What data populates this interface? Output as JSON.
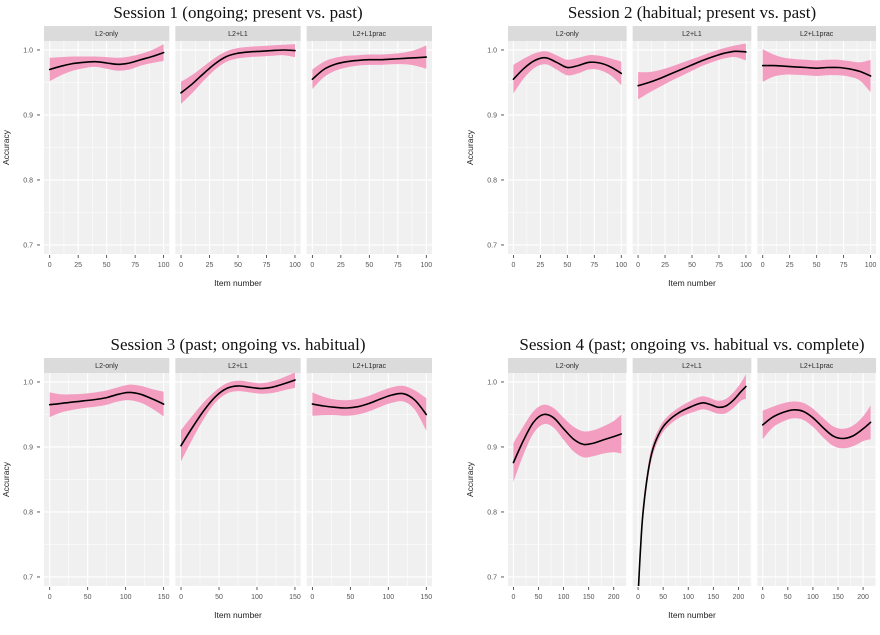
{
  "page": {
    "background": "#ffffff"
  },
  "colors": {
    "ribbon": "#f39ec1",
    "line": "#000000",
    "panel_bg": "#f0f0f0",
    "strip_bg": "#dbdbdb",
    "grid_major": "#ffffff",
    "grid_minor": "#ffffff",
    "tick_mark": "#333333",
    "axis_text": "#555555",
    "axis_title": "#222222",
    "title_text": "#111111"
  },
  "chart_data": [
    {
      "type": "line",
      "title": "Session 1 (ongoing; present vs. past)",
      "xlabel": "Item number",
      "ylabel": "Accuracy",
      "x_max": 100,
      "x_ticks": [
        0,
        25,
        50,
        75,
        100
      ],
      "y_ticks": [
        0.7,
        0.8,
        0.9,
        1.0
      ],
      "y_tick_labels": [
        "0.7",
        "0.8",
        "0.9",
        "1.0"
      ],
      "ylim": [
        0.686,
        1.014
      ],
      "grid": true,
      "legend": "none",
      "facets": [
        {
          "label": "L2-only",
          "x": [
            0,
            10,
            20,
            30,
            40,
            50,
            60,
            70,
            80,
            90,
            100
          ],
          "y": [
            0.97,
            0.975,
            0.979,
            0.981,
            0.982,
            0.98,
            0.978,
            0.98,
            0.985,
            0.99,
            0.996
          ],
          "hi": [
            0.988,
            0.989,
            0.99,
            0.99,
            0.99,
            0.989,
            0.988,
            0.99,
            0.994,
            1.0,
            1.009
          ],
          "lo": [
            0.952,
            0.961,
            0.968,
            0.972,
            0.974,
            0.971,
            0.968,
            0.97,
            0.976,
            0.98,
            0.983
          ]
        },
        {
          "label": "L2+L1",
          "x": [
            0,
            10,
            20,
            30,
            40,
            50,
            60,
            70,
            80,
            90,
            100
          ],
          "y": [
            0.934,
            0.948,
            0.964,
            0.979,
            0.99,
            0.995,
            0.997,
            0.998,
            0.999,
            1.0,
            0.999
          ],
          "hi": [
            0.951,
            0.962,
            0.975,
            0.988,
            0.998,
            1.003,
            1.005,
            1.006,
            1.007,
            1.008,
            1.009
          ],
          "lo": [
            0.917,
            0.934,
            0.953,
            0.97,
            0.982,
            0.987,
            0.989,
            0.99,
            0.991,
            0.992,
            0.989
          ]
        },
        {
          "label": "L2+L1prac",
          "x": [
            0,
            10,
            20,
            30,
            40,
            50,
            60,
            70,
            80,
            90,
            100
          ],
          "y": [
            0.955,
            0.97,
            0.978,
            0.982,
            0.984,
            0.985,
            0.985,
            0.986,
            0.987,
            0.988,
            0.989
          ],
          "hi": [
            0.97,
            0.982,
            0.988,
            0.991,
            0.992,
            0.993,
            0.993,
            0.994,
            0.996,
            1.0,
            1.007
          ],
          "lo": [
            0.94,
            0.958,
            0.968,
            0.973,
            0.976,
            0.977,
            0.977,
            0.978,
            0.978,
            0.976,
            0.971
          ]
        }
      ]
    },
    {
      "type": "line",
      "title": "Session 2 (habitual; present vs. past)",
      "xlabel": "Item number",
      "ylabel": "Accuracy",
      "x_max": 100,
      "x_ticks": [
        0,
        25,
        50,
        75,
        100
      ],
      "y_ticks": [
        0.7,
        0.8,
        0.9,
        1.0
      ],
      "y_tick_labels": [
        "0.7",
        "0.8",
        "0.9",
        "1.0"
      ],
      "ylim": [
        0.686,
        1.014
      ],
      "grid": true,
      "legend": "none",
      "facets": [
        {
          "label": "L2-only",
          "x": [
            0,
            10,
            20,
            30,
            40,
            50,
            60,
            70,
            80,
            90,
            100
          ],
          "y": [
            0.955,
            0.972,
            0.984,
            0.988,
            0.981,
            0.973,
            0.976,
            0.981,
            0.98,
            0.974,
            0.964
          ],
          "hi": [
            0.977,
            0.987,
            0.995,
            0.998,
            0.992,
            0.985,
            0.988,
            0.992,
            0.991,
            0.987,
            0.982
          ],
          "lo": [
            0.933,
            0.957,
            0.973,
            0.978,
            0.97,
            0.961,
            0.964,
            0.97,
            0.969,
            0.961,
            0.946
          ]
        },
        {
          "label": "L2+L1",
          "x": [
            0,
            10,
            20,
            30,
            40,
            50,
            60,
            70,
            80,
            90,
            100
          ],
          "y": [
            0.945,
            0.95,
            0.956,
            0.963,
            0.97,
            0.977,
            0.984,
            0.99,
            0.995,
            0.998,
            0.997
          ],
          "hi": [
            0.966,
            0.966,
            0.969,
            0.974,
            0.98,
            0.986,
            0.992,
            0.998,
            1.003,
            1.007,
            1.01
          ],
          "lo": [
            0.924,
            0.934,
            0.943,
            0.952,
            0.96,
            0.968,
            0.976,
            0.982,
            0.987,
            0.989,
            0.984
          ]
        },
        {
          "label": "L2+L1prac",
          "x": [
            0,
            10,
            20,
            30,
            40,
            50,
            60,
            70,
            80,
            90,
            100
          ],
          "y": [
            0.976,
            0.976,
            0.975,
            0.974,
            0.973,
            0.972,
            0.973,
            0.973,
            0.971,
            0.967,
            0.96
          ],
          "hi": [
            1.001,
            0.993,
            0.988,
            0.986,
            0.985,
            0.984,
            0.985,
            0.985,
            0.983,
            0.981,
            0.985
          ],
          "lo": [
            0.951,
            0.959,
            0.962,
            0.962,
            0.961,
            0.96,
            0.961,
            0.961,
            0.959,
            0.953,
            0.935
          ]
        }
      ]
    },
    {
      "type": "line",
      "title": "Session 3 (past; ongoing vs. habitual)",
      "xlabel": "Item number",
      "ylabel": "Accuracy",
      "x_max": 150,
      "x_ticks": [
        0,
        50,
        100,
        150
      ],
      "y_ticks": [
        0.7,
        0.8,
        0.9,
        1.0
      ],
      "y_tick_labels": [
        "0.7",
        "0.8",
        "0.9",
        "1.0"
      ],
      "ylim": [
        0.686,
        1.014
      ],
      "grid": true,
      "legend": "none",
      "facets": [
        {
          "label": "L2-only",
          "x": [
            0,
            15,
            30,
            45,
            60,
            75,
            90,
            105,
            120,
            135,
            150
          ],
          "y": [
            0.965,
            0.967,
            0.969,
            0.971,
            0.973,
            0.976,
            0.981,
            0.984,
            0.981,
            0.974,
            0.966
          ],
          "hi": [
            0.984,
            0.981,
            0.981,
            0.982,
            0.984,
            0.987,
            0.992,
            0.996,
            0.994,
            0.989,
            0.985
          ],
          "lo": [
            0.946,
            0.953,
            0.957,
            0.96,
            0.962,
            0.965,
            0.97,
            0.972,
            0.968,
            0.959,
            0.947
          ]
        },
        {
          "label": "L2+L1",
          "x": [
            0,
            15,
            30,
            45,
            60,
            75,
            90,
            105,
            120,
            135,
            150
          ],
          "y": [
            0.902,
            0.93,
            0.956,
            0.977,
            0.99,
            0.994,
            0.992,
            0.99,
            0.992,
            0.997,
            1.003
          ],
          "hi": [
            0.926,
            0.948,
            0.969,
            0.986,
            0.998,
            1.002,
            1.0,
            0.998,
            1.001,
            1.007,
            1.015
          ],
          "lo": [
            0.878,
            0.912,
            0.943,
            0.968,
            0.982,
            0.986,
            0.984,
            0.982,
            0.983,
            0.987,
            0.991
          ]
        },
        {
          "label": "L2+L1prac",
          "x": [
            0,
            15,
            30,
            45,
            60,
            75,
            90,
            105,
            120,
            135,
            150
          ],
          "y": [
            0.966,
            0.963,
            0.961,
            0.96,
            0.962,
            0.967,
            0.974,
            0.98,
            0.982,
            0.972,
            0.95
          ],
          "hi": [
            0.984,
            0.977,
            0.973,
            0.972,
            0.974,
            0.979,
            0.986,
            0.992,
            0.994,
            0.987,
            0.975
          ],
          "lo": [
            0.948,
            0.949,
            0.949,
            0.948,
            0.95,
            0.955,
            0.962,
            0.968,
            0.97,
            0.957,
            0.925
          ]
        }
      ]
    },
    {
      "type": "line",
      "title": "Session 4 (past; ongoing vs. habitual vs. complete)",
      "xlabel": "Item number",
      "ylabel": "Accuracy",
      "x_max": 215,
      "x_ticks": [
        0,
        50,
        100,
        150,
        200
      ],
      "y_ticks": [
        0.7,
        0.8,
        0.9,
        1.0
      ],
      "y_tick_labels": [
        "0.7",
        "0.8",
        "0.9",
        "1.0"
      ],
      "ylim": [
        0.686,
        1.014
      ],
      "grid": true,
      "legend": "none",
      "facets": [
        {
          "label": "L2-only",
          "x": [
            0,
            20,
            40,
            60,
            80,
            100,
            120,
            140,
            160,
            180,
            200,
            215
          ],
          "y": [
            0.876,
            0.91,
            0.938,
            0.95,
            0.945,
            0.928,
            0.912,
            0.904,
            0.906,
            0.911,
            0.916,
            0.92
          ],
          "hi": [
            0.906,
            0.932,
            0.955,
            0.965,
            0.96,
            0.945,
            0.931,
            0.924,
            0.926,
            0.932,
            0.94,
            0.95
          ],
          "lo": [
            0.846,
            0.888,
            0.921,
            0.935,
            0.93,
            0.911,
            0.893,
            0.884,
            0.886,
            0.89,
            0.892,
            0.89
          ]
        },
        {
          "label": "L2+L1",
          "x": [
            0,
            5,
            10,
            20,
            30,
            45,
            60,
            80,
            100,
            115,
            130,
            145,
            160,
            175,
            190,
            205,
            215
          ],
          "y": [
            0.672,
            0.745,
            0.8,
            0.862,
            0.898,
            0.925,
            0.94,
            0.952,
            0.96,
            0.965,
            0.968,
            0.965,
            0.961,
            0.963,
            0.972,
            0.985,
            0.993
          ],
          "hi": [
            0.69,
            0.76,
            0.812,
            0.872,
            0.907,
            0.933,
            0.948,
            0.96,
            0.969,
            0.975,
            0.978,
            0.975,
            0.971,
            0.974,
            0.984,
            0.999,
            1.012
          ],
          "lo": [
            0.654,
            0.73,
            0.788,
            0.852,
            0.889,
            0.917,
            0.932,
            0.944,
            0.951,
            0.955,
            0.958,
            0.955,
            0.951,
            0.952,
            0.96,
            0.971,
            0.974
          ]
        },
        {
          "label": "L2+L1prac",
          "x": [
            0,
            20,
            40,
            60,
            80,
            100,
            120,
            140,
            160,
            180,
            200,
            215
          ],
          "y": [
            0.934,
            0.946,
            0.953,
            0.957,
            0.955,
            0.945,
            0.93,
            0.917,
            0.913,
            0.917,
            0.928,
            0.938
          ],
          "hi": [
            0.956,
            0.962,
            0.967,
            0.97,
            0.968,
            0.959,
            0.945,
            0.932,
            0.928,
            0.933,
            0.947,
            0.964
          ],
          "lo": [
            0.912,
            0.93,
            0.939,
            0.944,
            0.942,
            0.931,
            0.915,
            0.902,
            0.898,
            0.901,
            0.909,
            0.912
          ]
        }
      ]
    }
  ]
}
